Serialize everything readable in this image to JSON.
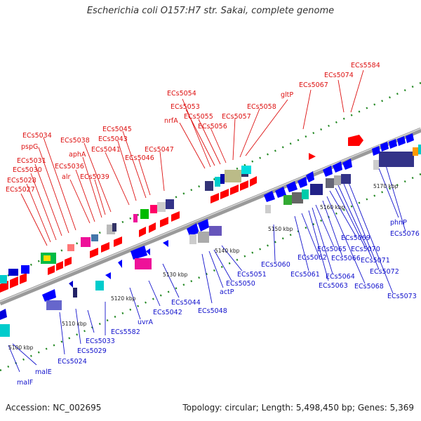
{
  "title": "Escherichia coli O157:H7 str. Sakai, complete genome",
  "footer": {
    "accession": "Accession: NC_002695",
    "summary": "Topology: circular; Length: 5,498,450 bp; Genes: 5,369"
  },
  "colors": {
    "forward_label": "#dd1111",
    "reverse_label": "#1111cc",
    "forward_arrow": "#ff0000",
    "reverse_arrow": "#0000ff",
    "backbone": "#888888",
    "tick_mark": "#228822"
  },
  "scale_ticks": [
    {
      "label": "5100 kbp"
    },
    {
      "label": "5110 kbp"
    },
    {
      "label": "5120 kbp"
    },
    {
      "label": "5130 kbp"
    },
    {
      "label": "5140 kbp"
    },
    {
      "label": "5150 kbp"
    },
    {
      "label": "5160 kbp"
    },
    {
      "label": "5170 kbp"
    }
  ],
  "forward_genes": [
    "ECs5027",
    "ECs5028",
    "ECs5030",
    "ECs5031",
    "pspG",
    "ECs5034",
    "alr",
    "ECs5036",
    "ECs5039",
    "aphA",
    "ECs5038",
    "ECs5041",
    "ECs5043",
    "ECs5045",
    "ECs5046",
    "ECs5047",
    "nrfA",
    "ECs5054",
    "ECs5053",
    "ECs5055",
    "ECs5056",
    "ECs5057",
    "ECs5058",
    "gltP",
    "ECs5067",
    "ECs5074",
    "ECs5584"
  ],
  "reverse_genes": [
    "malF",
    "malE",
    "ECs5024",
    "ECs5029",
    "ECs5033",
    "ECs5582",
    "uvrA",
    "ECs5042",
    "ECs5044",
    "ECs5048",
    "actP",
    "ECs5050",
    "ECs5051",
    "ECs5060",
    "ECs5061",
    "ECs5062",
    "ECs5063",
    "ECs5064",
    "ECs5065",
    "ECs5066",
    "ECs5068",
    "ECs5069",
    "ECs5070",
    "ECs5071",
    "ECs5072",
    "ECs5073",
    "phnP",
    "ECs5076"
  ]
}
